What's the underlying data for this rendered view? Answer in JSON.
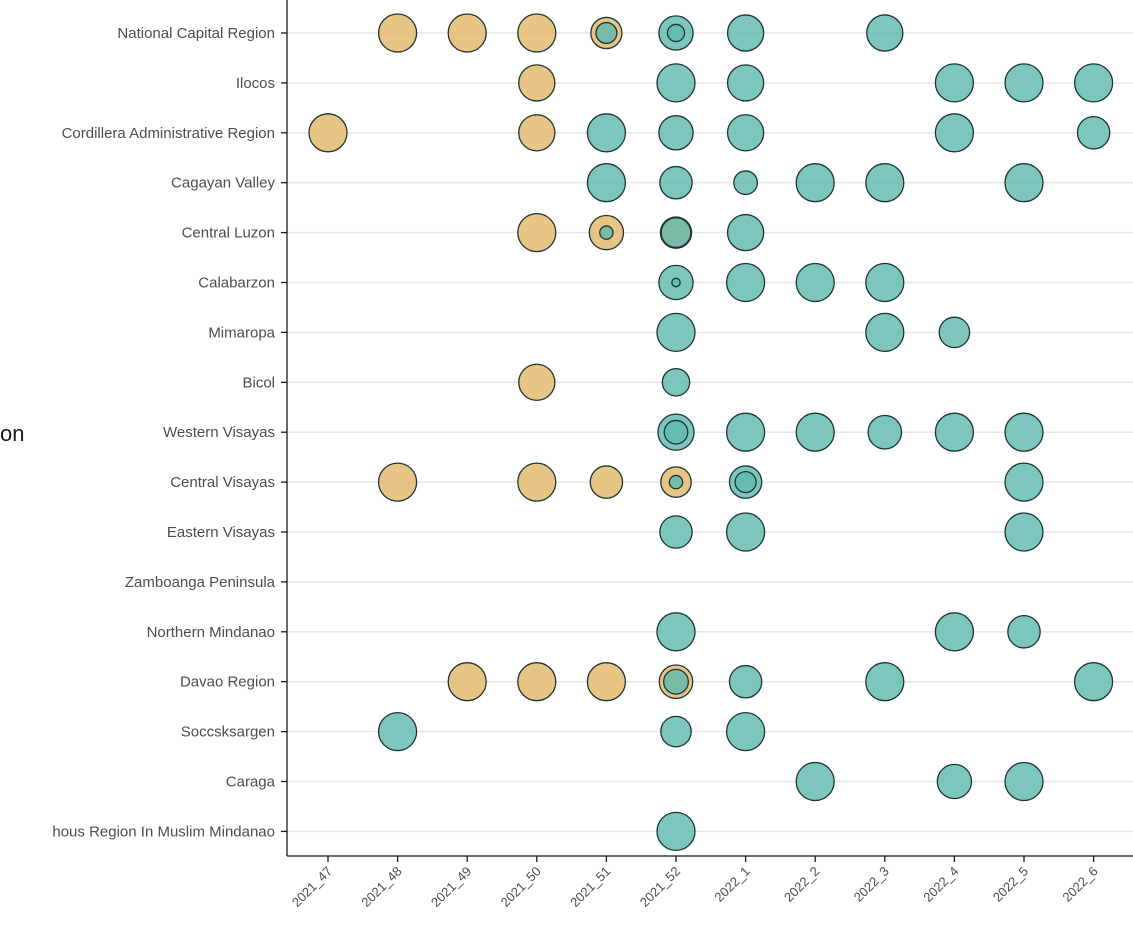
{
  "chart_data": {
    "type": "scatter",
    "ylabel": "on",
    "categories_x": [
      "2021_47",
      "2021_48",
      "2021_49",
      "2021_50",
      "2021_51",
      "2021_52",
      "2022_1",
      "2022_2",
      "2022_3",
      "2022_4",
      "2022_5",
      "2022_6"
    ],
    "categories_y": [
      "National Capital Region",
      "Ilocos",
      "Cordillera Administrative Region",
      "Cagayan Valley",
      "Central Luzon",
      "Calabarzon",
      "Mimaropa",
      "Bicol",
      "Western Visayas",
      "Central Visayas",
      "Eastern Visayas",
      "Zamboanga Peninsula",
      "Northern Mindanao",
      "Davao Region",
      "Soccsksargen",
      "Caraga",
      "hous Region In Muslim Mindanao"
    ],
    "grid": "horizontal",
    "colors": {
      "tan": "#e0b86a",
      "teal": "#5fb9b0",
      "outline": "#1f3532"
    },
    "points": [
      {
        "y": "National Capital Region",
        "x": "2021_48",
        "color": "tan",
        "size": 1.0
      },
      {
        "y": "National Capital Region",
        "x": "2021_49",
        "color": "tan",
        "size": 1.0
      },
      {
        "y": "National Capital Region",
        "x": "2021_50",
        "color": "tan",
        "size": 1.0
      },
      {
        "y": "National Capital Region",
        "x": "2021_51",
        "color": "tan",
        "size": 0.82
      },
      {
        "y": "National Capital Region",
        "x": "2021_51",
        "color": "teal",
        "size": 0.55
      },
      {
        "y": "National Capital Region",
        "x": "2021_52",
        "color": "teal",
        "size": 0.9
      },
      {
        "y": "National Capital Region",
        "x": "2021_52",
        "color": "teal",
        "size": 0.45
      },
      {
        "y": "National Capital Region",
        "x": "2022_1",
        "color": "teal",
        "size": 0.95
      },
      {
        "y": "National Capital Region",
        "x": "2022_3",
        "color": "teal",
        "size": 0.95
      },
      {
        "y": "Ilocos",
        "x": "2021_50",
        "color": "tan",
        "size": 0.95
      },
      {
        "y": "Ilocos",
        "x": "2021_52",
        "color": "teal",
        "size": 1.0
      },
      {
        "y": "Ilocos",
        "x": "2022_1",
        "color": "teal",
        "size": 0.95
      },
      {
        "y": "Ilocos",
        "x": "2022_4",
        "color": "teal",
        "size": 1.0
      },
      {
        "y": "Ilocos",
        "x": "2022_5",
        "color": "teal",
        "size": 1.0
      },
      {
        "y": "Ilocos",
        "x": "2022_6",
        "color": "teal",
        "size": 1.0
      },
      {
        "y": "Cordillera Administrative Region",
        "x": "2021_47",
        "color": "tan",
        "size": 1.0
      },
      {
        "y": "Cordillera Administrative Region",
        "x": "2021_50",
        "color": "tan",
        "size": 0.95
      },
      {
        "y": "Cordillera Administrative Region",
        "x": "2021_51",
        "color": "teal",
        "size": 1.0
      },
      {
        "y": "Cordillera Administrative Region",
        "x": "2021_52",
        "color": "teal",
        "size": 0.9
      },
      {
        "y": "Cordillera Administrative Region",
        "x": "2022_1",
        "color": "teal",
        "size": 0.95
      },
      {
        "y": "Cordillera Administrative Region",
        "x": "2022_4",
        "color": "teal",
        "size": 1.0
      },
      {
        "y": "Cordillera Administrative Region",
        "x": "2022_6",
        "color": "teal",
        "size": 0.85
      },
      {
        "y": "Cagayan Valley",
        "x": "2021_51",
        "color": "teal",
        "size": 1.0
      },
      {
        "y": "Cagayan Valley",
        "x": "2021_52",
        "color": "teal",
        "size": 0.85
      },
      {
        "y": "Cagayan Valley",
        "x": "2022_1",
        "color": "teal",
        "size": 0.62
      },
      {
        "y": "Cagayan Valley",
        "x": "2022_2",
        "color": "teal",
        "size": 1.0
      },
      {
        "y": "Cagayan Valley",
        "x": "2022_3",
        "color": "teal",
        "size": 1.0
      },
      {
        "y": "Cagayan Valley",
        "x": "2022_5",
        "color": "teal",
        "size": 1.0
      },
      {
        "y": "Central Luzon",
        "x": "2021_50",
        "color": "tan",
        "size": 1.0
      },
      {
        "y": "Central Luzon",
        "x": "2021_51",
        "color": "tan",
        "size": 0.9
      },
      {
        "y": "Central Luzon",
        "x": "2021_51",
        "color": "teal",
        "size": 0.35
      },
      {
        "y": "Central Luzon",
        "x": "2021_52",
        "color": "tan",
        "size": 0.82
      },
      {
        "y": "Central Luzon",
        "x": "2021_52",
        "color": "teal",
        "size": 0.78
      },
      {
        "y": "Central Luzon",
        "x": "2022_1",
        "color": "teal",
        "size": 0.95
      },
      {
        "y": "Calabarzon",
        "x": "2021_52",
        "color": "teal",
        "size": 0.9
      },
      {
        "y": "Calabarzon",
        "x": "2021_52",
        "color": "teal",
        "size": 0.22
      },
      {
        "y": "Calabarzon",
        "x": "2022_1",
        "color": "teal",
        "size": 1.0
      },
      {
        "y": "Calabarzon",
        "x": "2022_2",
        "color": "teal",
        "size": 1.0
      },
      {
        "y": "Calabarzon",
        "x": "2022_3",
        "color": "teal",
        "size": 1.0
      },
      {
        "y": "Mimaropa",
        "x": "2021_52",
        "color": "teal",
        "size": 1.0
      },
      {
        "y": "Mimaropa",
        "x": "2022_3",
        "color": "teal",
        "size": 1.0
      },
      {
        "y": "Mimaropa",
        "x": "2022_4",
        "color": "teal",
        "size": 0.8
      },
      {
        "y": "Bicol",
        "x": "2021_50",
        "color": "tan",
        "size": 0.95
      },
      {
        "y": "Bicol",
        "x": "2021_52",
        "color": "teal",
        "size": 0.72
      },
      {
        "y": "Western Visayas",
        "x": "2021_52",
        "color": "teal",
        "size": 0.95
      },
      {
        "y": "Western Visayas",
        "x": "2021_52",
        "color": "teal",
        "size": 0.62
      },
      {
        "y": "Western Visayas",
        "x": "2022_1",
        "color": "teal",
        "size": 1.0
      },
      {
        "y": "Western Visayas",
        "x": "2022_2",
        "color": "teal",
        "size": 1.0
      },
      {
        "y": "Western Visayas",
        "x": "2022_3",
        "color": "teal",
        "size": 0.88
      },
      {
        "y": "Western Visayas",
        "x": "2022_4",
        "color": "teal",
        "size": 1.0
      },
      {
        "y": "Western Visayas",
        "x": "2022_5",
        "color": "teal",
        "size": 1.0
      },
      {
        "y": "Central Visayas",
        "x": "2021_48",
        "color": "tan",
        "size": 1.0
      },
      {
        "y": "Central Visayas",
        "x": "2021_50",
        "color": "tan",
        "size": 1.0
      },
      {
        "y": "Central Visayas",
        "x": "2021_51",
        "color": "tan",
        "size": 0.85
      },
      {
        "y": "Central Visayas",
        "x": "2021_52",
        "color": "tan",
        "size": 0.8
      },
      {
        "y": "Central Visayas",
        "x": "2021_52",
        "color": "teal",
        "size": 0.35
      },
      {
        "y": "Central Visayas",
        "x": "2022_1",
        "color": "teal",
        "size": 0.85
      },
      {
        "y": "Central Visayas",
        "x": "2022_1",
        "color": "teal",
        "size": 0.55
      },
      {
        "y": "Central Visayas",
        "x": "2022_5",
        "color": "teal",
        "size": 1.0
      },
      {
        "y": "Eastern Visayas",
        "x": "2021_52",
        "color": "teal",
        "size": 0.85
      },
      {
        "y": "Eastern Visayas",
        "x": "2022_1",
        "color": "teal",
        "size": 1.0
      },
      {
        "y": "Eastern Visayas",
        "x": "2022_5",
        "color": "teal",
        "size": 1.0
      },
      {
        "y": "Northern Mindanao",
        "x": "2021_52",
        "color": "teal",
        "size": 1.0
      },
      {
        "y": "Northern Mindanao",
        "x": "2022_4",
        "color": "teal",
        "size": 1.0
      },
      {
        "y": "Northern Mindanao",
        "x": "2022_5",
        "color": "teal",
        "size": 0.85
      },
      {
        "y": "Davao Region",
        "x": "2021_49",
        "color": "tan",
        "size": 1.0
      },
      {
        "y": "Davao Region",
        "x": "2021_50",
        "color": "tan",
        "size": 1.0
      },
      {
        "y": "Davao Region",
        "x": "2021_51",
        "color": "tan",
        "size": 1.0
      },
      {
        "y": "Davao Region",
        "x": "2021_52",
        "color": "tan",
        "size": 0.88
      },
      {
        "y": "Davao Region",
        "x": "2021_52",
        "color": "teal",
        "size": 0.65
      },
      {
        "y": "Davao Region",
        "x": "2022_1",
        "color": "teal",
        "size": 0.85
      },
      {
        "y": "Davao Region",
        "x": "2022_3",
        "color": "teal",
        "size": 1.0
      },
      {
        "y": "Davao Region",
        "x": "2022_6",
        "color": "teal",
        "size": 1.0
      },
      {
        "y": "Soccsksargen",
        "x": "2021_48",
        "color": "teal",
        "size": 1.0
      },
      {
        "y": "Soccsksargen",
        "x": "2021_52",
        "color": "teal",
        "size": 0.8
      },
      {
        "y": "Soccsksargen",
        "x": "2022_1",
        "color": "teal",
        "size": 1.0
      },
      {
        "y": "Caraga",
        "x": "2022_2",
        "color": "teal",
        "size": 1.0
      },
      {
        "y": "Caraga",
        "x": "2022_4",
        "color": "teal",
        "size": 0.9
      },
      {
        "y": "Caraga",
        "x": "2022_5",
        "color": "teal",
        "size": 1.0
      },
      {
        "y": "hous Region In Muslim Mindanao",
        "x": "2021_52",
        "color": "teal",
        "size": 1.0
      }
    ]
  }
}
